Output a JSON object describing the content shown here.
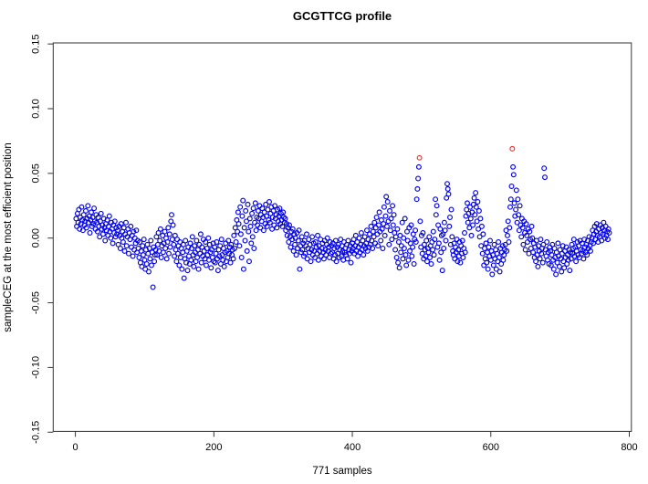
{
  "figure": {
    "background_color": "#FFFFFF",
    "axis_color": "#333333"
  },
  "chart_data": {
    "type": "scatter",
    "title": "GCGTTCG profile",
    "xlabel": "771 samples",
    "ylabel": "sampleCEG at the most efficient position",
    "n_samples": 771,
    "xlim": [
      0,
      800
    ],
    "ylim": [
      -0.15,
      0.15
    ],
    "grid": false,
    "legend": null,
    "x_ticks": [
      {
        "v": 0,
        "label": "0"
      },
      {
        "v": 200,
        "label": "200"
      },
      {
        "v": 400,
        "label": "400"
      },
      {
        "v": 600,
        "label": "600"
      },
      {
        "v": 800,
        "label": "800"
      }
    ],
    "y_ticks": [
      {
        "v": 0.15,
        "label": "0.15"
      },
      {
        "v": 0.1,
        "label": "0.10"
      },
      {
        "v": 0.05,
        "label": "0.05"
      },
      {
        "v": 0.0,
        "label": "0.00"
      },
      {
        "v": -0.05,
        "label": "-0.05"
      },
      {
        "v": -0.1,
        "label": "-0.10"
      },
      {
        "v": -0.15,
        "label": "-0.15"
      }
    ],
    "y_null_note": "null entries are the two flagged outlier samples listed under outliers",
    "series": [
      {
        "name": "sampleCEG values",
        "marker": "open-circle",
        "color": "#0000EE",
        "x_rule": "sample index 1..771 (x = array position + 1)",
        "y": [
          0.015,
          0.009,
          0.019,
          0.012,
          0.022,
          0.007,
          0.016,
          0.011,
          0.024,
          0.014,
          0.006,
          0.018,
          0.01,
          0.013,
          0.021,
          0.008,
          0.015,
          0.025,
          0.012,
          0.017,
          0.004,
          0.014,
          0.02,
          0.009,
          0.016,
          0.011,
          0.023,
          0.013,
          0.007,
          0.018,
          0.012,
          0.005,
          0.016,
          0.009,
          0.001,
          0.013,
          0.019,
          0.007,
          0.01,
          0.003,
          0.015,
          0.008,
          -0.002,
          0.011,
          0.006,
          0.014,
          0.002,
          0.009,
          0.017,
          0.005,
          0.0,
          0.012,
          0.007,
          -0.004,
          0.01,
          0.004,
          0.013,
          0.001,
          0.008,
          0.003,
          0.006,
          -0.005,
          0.009,
          0.002,
          -0.008,
          0.011,
          0.0,
          0.005,
          -0.003,
          0.008,
          -0.01,
          0.003,
          0.012,
          -0.006,
          0.001,
          0.007,
          -0.012,
          0.004,
          -0.001,
          0.009,
          -0.007,
          0.002,
          -0.014,
          0.005,
          -0.009,
          0.0,
          -0.004,
          0.006,
          -0.011,
          -0.002,
          -0.008,
          -0.015,
          -0.003,
          -0.019,
          -0.01,
          -0.022,
          -0.006,
          -0.013,
          -0.001,
          -0.017,
          -0.024,
          -0.009,
          -0.02,
          -0.005,
          -0.012,
          -0.026,
          -0.008,
          -0.016,
          -0.002,
          -0.021,
          -0.011,
          -0.038,
          -0.007,
          -0.018,
          -0.013,
          -0.009,
          0.001,
          -0.013,
          -0.005,
          0.004,
          -0.01,
          -0.002,
          0.007,
          -0.015,
          -0.006,
          0.002,
          -0.011,
          -0.004,
          0.005,
          -0.008,
          0.0,
          -0.016,
          -0.003,
          0.008,
          -0.012,
          0.003,
          -0.007,
          0.013,
          0.018,
          -0.001,
          0.01,
          -0.005,
          -0.014,
          0.002,
          -0.009,
          -0.018,
          -0.001,
          -0.012,
          -0.006,
          -0.021,
          -0.003,
          -0.015,
          -0.008,
          -0.024,
          -0.011,
          -0.005,
          -0.031,
          -0.016,
          -0.002,
          -0.019,
          -0.01,
          -0.025,
          -0.007,
          -0.014,
          -0.02,
          -0.004,
          -0.017,
          -0.008,
          0.001,
          -0.013,
          -0.022,
          -0.006,
          -0.011,
          -0.018,
          -0.002,
          -0.015,
          -0.009,
          -0.024,
          -0.005,
          -0.012,
          0.003,
          -0.019,
          -0.007,
          -0.014,
          -0.001,
          -0.01,
          -0.016,
          -0.003,
          -0.021,
          -0.008,
          -0.013,
          0.0,
          -0.017,
          -0.005,
          -0.011,
          -0.023,
          -0.009,
          -0.015,
          -0.004,
          -0.018,
          -0.007,
          -0.019,
          -0.012,
          -0.003,
          -0.016,
          -0.025,
          -0.009,
          -0.014,
          -0.006,
          -0.02,
          -0.001,
          -0.013,
          -0.017,
          -0.008,
          -0.022,
          -0.011,
          -0.004,
          -0.018,
          -0.01,
          -0.015,
          -0.002,
          -0.012,
          -0.007,
          -0.019,
          -0.005,
          -0.013,
          -0.009,
          -0.016,
          0.002,
          -0.008,
          0.008,
          -0.003,
          0.014,
          0.005,
          0.02,
          0.011,
          -0.006,
          0.024,
          0.003,
          -0.015,
          0.017,
          0.029,
          -0.024,
          0.008,
          -0.002,
          0.021,
          0.013,
          -0.01,
          0.026,
          0.005,
          -0.018,
          0.015,
          0.009,
          -0.004,
          0.019,
          0.001,
          0.023,
          -0.008,
          0.012,
          0.027,
          0.006,
          0.016,
          0.01,
          0.021,
          0.015,
          0.025,
          0.008,
          0.018,
          0.013,
          0.023,
          0.016,
          0.006,
          0.02,
          0.011,
          0.026,
          0.017,
          0.009,
          0.022,
          0.014,
          0.028,
          0.012,
          0.019,
          0.024,
          0.007,
          0.016,
          0.021,
          0.01,
          0.025,
          0.015,
          0.018,
          0.008,
          0.022,
          0.013,
          0.017,
          0.023,
          0.011,
          0.019,
          0.014,
          0.009,
          0.02,
          0.016,
          0.012,
          0.015,
          0.006,
          0.011,
          0.002,
          0.008,
          -0.003,
          0.01,
          0.001,
          -0.007,
          0.005,
          -0.001,
          0.007,
          -0.01,
          0.003,
          -0.005,
          0.0,
          -0.013,
          0.004,
          -0.008,
          -0.002,
          0.006,
          -0.024,
          -0.006,
          -0.011,
          0.001,
          -0.009,
          -0.004,
          -0.014,
          -0.002,
          -0.012,
          -0.006,
          0.003,
          -0.016,
          -0.008,
          -0.001,
          -0.011,
          -0.005,
          -0.018,
          -0.009,
          0.001,
          -0.013,
          -0.004,
          -0.01,
          -0.015,
          -0.003,
          -0.007,
          -0.012,
          0.002,
          -0.017,
          -0.006,
          -0.01,
          -0.001,
          -0.014,
          -0.008,
          -0.004,
          -0.011,
          -0.016,
          -0.002,
          -0.009,
          -0.013,
          -0.005,
          0.0,
          -0.01,
          -0.007,
          -0.015,
          -0.003,
          -0.012,
          -0.006,
          -0.011,
          -0.004,
          -0.016,
          -0.008,
          -0.013,
          -0.002,
          -0.018,
          -0.007,
          -0.012,
          -0.005,
          -0.015,
          -0.009,
          -0.001,
          -0.014,
          -0.006,
          -0.01,
          -0.017,
          -0.003,
          -0.011,
          -0.008,
          -0.013,
          -0.005,
          -0.016,
          -0.002,
          -0.009,
          -0.012,
          -0.006,
          -0.019,
          -0.01,
          -0.004,
          -0.008,
          -0.001,
          -0.012,
          -0.006,
          0.002,
          -0.01,
          -0.003,
          -0.014,
          -0.007,
          0.0,
          -0.011,
          -0.005,
          0.004,
          -0.009,
          -0.002,
          -0.013,
          -0.006,
          0.001,
          -0.008,
          -0.004,
          0.006,
          -0.01,
          -0.001,
          -0.007,
          0.003,
          -0.005,
          0.009,
          -0.002,
          -0.008,
          0.005,
          0.001,
          0.012,
          -0.004,
          0.008,
          0.016,
          0.003,
          -0.006,
          0.01,
          0.02,
          0.005,
          -0.002,
          0.014,
          0.007,
          -0.008,
          0.011,
          0.024,
          0.002,
          0.017,
          0.032,
          0.009,
          0.028,
          0.013,
          -0.005,
          0.021,
          0.006,
          0.015,
          -0.001,
          0.025,
          0.01,
          0.018,
          0.004,
          -0.009,
          0.001,
          -0.015,
          0.007,
          -0.019,
          -0.003,
          -0.023,
          0.002,
          -0.011,
          -0.006,
          0.012,
          -0.016,
          0.0,
          -0.008,
          0.015,
          -0.013,
          -0.021,
          0.005,
          -0.002,
          -0.017,
          0.008,
          -0.01,
          -0.004,
          0.01,
          -0.014,
          -0.007,
          0.003,
          -0.02,
          -0.001,
          0.006,
          -0.003,
          0.03,
          0.038,
          0.046,
          0.055,
          null,
          0.013,
          -0.007,
          0.002,
          -0.012,
          0.004,
          -0.016,
          -0.005,
          -0.009,
          -0.014,
          -0.002,
          -0.018,
          -0.008,
          -0.011,
          0.001,
          -0.015,
          -0.006,
          -0.02,
          -0.003,
          -0.009,
          0.005,
          -0.013,
          -0.001,
          0.03,
          0.018,
          0.025,
          -0.007,
          0.01,
          -0.004,
          -0.017,
          0.007,
          -0.011,
          0.002,
          -0.025,
          0.003,
          -0.008,
          0.012,
          0.006,
          -0.002,
          0.031,
          0.042,
          0.038,
          0.034,
          0.009,
          0.016,
          -0.005,
          0.022,
          0.001,
          -0.01,
          -0.013,
          -0.004,
          -0.016,
          -0.007,
          -0.011,
          -0.001,
          -0.018,
          -0.009,
          -0.014,
          -0.003,
          -0.019,
          -0.006,
          -0.012,
          -0.002,
          -0.015,
          -0.008,
          0.004,
          -0.011,
          0.017,
          0.022,
          0.027,
          0.012,
          0.019,
          0.008,
          0.024,
          0.015,
          0.002,
          0.02,
          0.01,
          0.026,
          0.031,
          0.018,
          0.035,
          0.024,
          0.013,
          0.028,
          0.007,
          0.021,
          0.001,
          0.015,
          -0.006,
          0.009,
          -0.012,
          0.003,
          -0.021,
          -0.008,
          -0.016,
          -0.004,
          -0.019,
          -0.011,
          -0.024,
          -0.007,
          -0.014,
          -0.002,
          -0.017,
          -0.01,
          -0.028,
          -0.013,
          -0.021,
          -0.005,
          -0.016,
          -0.009,
          -0.024,
          -0.012,
          -0.018,
          -0.003,
          -0.015,
          -0.026,
          -0.008,
          -0.02,
          -0.011,
          -0.006,
          -0.017,
          -0.013,
          -0.009,
          -0.005,
          0.006,
          -0.01,
          0.002,
          0.013,
          -0.003,
          0.008,
          0.024,
          0.03,
          0.04,
          null,
          0.055,
          0.049,
          0.027,
          0.017,
          0.022,
          0.037,
          0.012,
          0.03,
          0.018,
          0.006,
          0.025,
          0.01,
          0.001,
          0.015,
          0.008,
          -0.005,
          0.013,
          0.004,
          -0.009,
          0.011,
          0.002,
          -0.003,
          0.007,
          -0.012,
          0.005,
          -0.001,
          -0.008,
          0.009,
          0.0,
          -0.011,
          -0.004,
          -0.015,
          -0.007,
          -0.018,
          -0.002,
          -0.013,
          -0.022,
          -0.006,
          -0.01,
          -0.016,
          -0.001,
          -0.012,
          -0.008,
          -0.019,
          -0.005,
          0.054,
          0.047,
          -0.009,
          -0.014,
          -0.003,
          -0.017,
          -0.011,
          -0.02,
          -0.007,
          -0.01,
          -0.021,
          -0.013,
          -0.005,
          -0.017,
          -0.024,
          -0.008,
          -0.015,
          -0.028,
          -0.011,
          -0.019,
          -0.004,
          -0.014,
          -0.022,
          -0.009,
          -0.016,
          -0.026,
          -0.012,
          -0.006,
          -0.018,
          -0.023,
          -0.01,
          -0.015,
          -0.007,
          -0.02,
          -0.013,
          -0.017,
          -0.009,
          -0.025,
          -0.011,
          -0.016,
          -0.005,
          -0.012,
          -0.008,
          -0.001,
          -0.014,
          -0.007,
          -0.018,
          -0.01,
          -0.003,
          -0.013,
          -0.006,
          -0.015,
          -0.002,
          -0.009,
          -0.012,
          -0.004,
          -0.01,
          -0.016,
          -0.001,
          -0.007,
          -0.011,
          -0.005,
          -0.013,
          -0.002,
          -0.008,
          0.001,
          -0.006,
          -0.01,
          -0.003,
          0.0,
          0.006,
          -0.004,
          0.003,
          0.009,
          -0.001,
          0.005,
          0.011,
          0.002,
          -0.003,
          0.007,
          0.001,
          0.01,
          0.004,
          -0.002,
          0.008,
          0.003,
          0.012,
          0.006,
          0.0,
          0.009,
          0.002,
          0.005,
          -0.001,
          0.007,
          0.004
        ]
      }
    ],
    "outliers": {
      "name": "flagged samples",
      "marker": "open-circle",
      "color": "#EE3333",
      "points": [
        [
          497,
          0.062
        ],
        [
          631,
          0.069
        ]
      ]
    }
  }
}
